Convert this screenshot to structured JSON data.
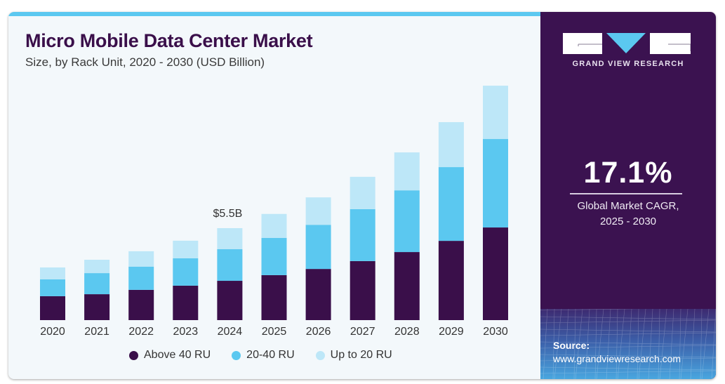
{
  "header": {
    "title": "Micro Mobile Data Center Market",
    "subtitle": "Size, by Rack Unit, 2020 - 2030 (USD Billion)"
  },
  "brand": {
    "logo_text": "GRAND VIEW RESEARCH",
    "cagr_value": "17.1%",
    "cagr_label_line1": "Global Market CAGR,",
    "cagr_label_line2": "2025 - 2030",
    "source_label": "Source:",
    "source_url": "www.grandviewresearch.com"
  },
  "colors": {
    "above_40_ru": "#3a0f4a",
    "ru_20_40": "#5bc8f0",
    "up_to_20_ru": "#bde7f8",
    "accent": "#5bc8f0",
    "panel": "#3b1250"
  },
  "legend": [
    {
      "label": "Above 40 RU",
      "color": "#3a0f4a"
    },
    {
      "label": "20-40 RU",
      "color": "#5bc8f0"
    },
    {
      "label": "Up to 20 RU",
      "color": "#bde7f8"
    }
  ],
  "chart_data": {
    "type": "bar",
    "stacked": true,
    "title": "Micro Mobile Data Center Market",
    "subtitle": "Size, by Rack Unit, 2020 - 2030 (USD Billion)",
    "xlabel": "",
    "ylabel": "",
    "categories": [
      "2020",
      "2021",
      "2022",
      "2023",
      "2024",
      "2025",
      "2026",
      "2027",
      "2028",
      "2029",
      "2030"
    ],
    "series": [
      {
        "name": "Above 40 RU",
        "color": "#3a0f4a",
        "values": [
          1.43,
          1.55,
          1.81,
          2.06,
          2.35,
          2.69,
          3.06,
          3.53,
          4.07,
          4.74,
          5.54
        ]
      },
      {
        "name": "20-40 RU",
        "color": "#5bc8f0",
        "values": [
          1.01,
          1.26,
          1.39,
          1.64,
          1.89,
          2.23,
          2.64,
          3.11,
          3.69,
          4.41,
          5.29
        ]
      },
      {
        "name": "Up to 20 RU",
        "color": "#bde7f8",
        "values": [
          0.71,
          0.8,
          0.92,
          1.05,
          1.26,
          1.43,
          1.64,
          1.93,
          2.27,
          2.69,
          3.19
        ]
      }
    ],
    "annotations": [
      {
        "category": "2024",
        "text": "$5.5B"
      }
    ],
    "ylim": [
      0,
      14.5
    ],
    "grid": false,
    "legend_position": "bottom"
  }
}
